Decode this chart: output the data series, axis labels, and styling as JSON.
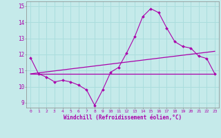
{
  "xlabel": "Windchill (Refroidissement éolien,°C)",
  "xlim": [
    -0.5,
    23.5
  ],
  "ylim": [
    8.7,
    15.3
  ],
  "yticks": [
    9,
    10,
    11,
    12,
    13,
    14,
    15
  ],
  "xticks": [
    0,
    1,
    2,
    3,
    4,
    5,
    6,
    7,
    8,
    9,
    10,
    11,
    12,
    13,
    14,
    15,
    16,
    17,
    18,
    19,
    20,
    21,
    22,
    23
  ],
  "background_color": "#c5eaea",
  "line_color": "#aa00aa",
  "grid_color": "#aadddd",
  "line1_x": [
    0,
    1,
    2,
    3,
    4,
    5,
    6,
    7,
    8,
    9,
    10,
    11,
    12,
    13,
    14,
    15,
    16,
    17,
    18,
    19,
    20,
    21,
    22,
    23
  ],
  "line1_y": [
    11.8,
    10.8,
    10.6,
    10.3,
    10.4,
    10.3,
    10.1,
    9.8,
    8.85,
    9.8,
    10.9,
    11.2,
    12.1,
    13.1,
    14.35,
    14.85,
    14.6,
    13.65,
    12.8,
    12.5,
    12.4,
    11.9,
    11.75,
    10.8
  ],
  "line2_x": [
    0,
    23
  ],
  "line2_y": [
    10.8,
    10.8
  ],
  "line3_x": [
    0,
    23
  ],
  "line3_y": [
    10.8,
    12.2
  ]
}
